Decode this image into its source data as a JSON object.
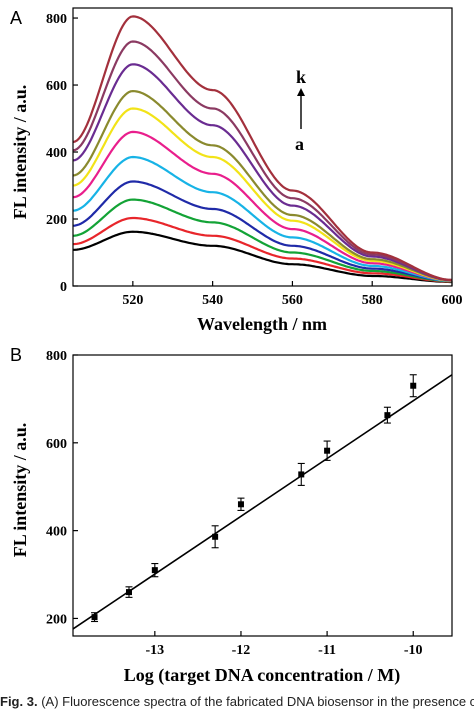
{
  "chart_data": [
    {
      "type": "line",
      "panel_label": "A",
      "xlabel": "Wavelength / nm",
      "ylabel": "FL intensity / a.u.",
      "xlim": [
        505,
        600
      ],
      "ylim": [
        0,
        830
      ],
      "x_ticks": [
        "520",
        "540",
        "560",
        "580",
        "600"
      ],
      "y_ticks": [
        "0",
        "200",
        "400",
        "600",
        "800"
      ],
      "grid": false,
      "annotation": {
        "top": "k",
        "bottom": "a"
      },
      "peak_wavelength": 520,
      "colors": [
        "#000000",
        "#e8262b",
        "#13a336",
        "#1f2aa8",
        "#17b3e6",
        "#e91e8c",
        "#f2e318",
        "#8a8a2e",
        "#6a2c91",
        "#8b3a62",
        "#a3303c"
      ],
      "series": [
        {
          "values_at": [
            505,
            520,
            540,
            560,
            580,
            600
          ],
          "values": [
            108,
            162,
            120,
            65,
            30,
            12
          ]
        },
        {
          "values_at": [
            505,
            520,
            540,
            560,
            580,
            600
          ],
          "values": [
            125,
            203,
            150,
            82,
            38,
            13
          ]
        },
        {
          "values_at": [
            505,
            520,
            540,
            560,
            580,
            600
          ],
          "values": [
            150,
            258,
            190,
            100,
            45,
            14
          ]
        },
        {
          "values_at": [
            505,
            520,
            540,
            560,
            580,
            600
          ],
          "values": [
            180,
            312,
            230,
            120,
            52,
            15
          ]
        },
        {
          "values_at": [
            505,
            520,
            540,
            560,
            580,
            600
          ],
          "values": [
            225,
            385,
            280,
            145,
            60,
            15
          ]
        },
        {
          "values_at": [
            505,
            520,
            540,
            560,
            580,
            600
          ],
          "values": [
            265,
            460,
            335,
            170,
            68,
            16
          ]
        },
        {
          "values_at": [
            505,
            520,
            540,
            560,
            580,
            600
          ],
          "values": [
            300,
            530,
            385,
            195,
            75,
            16
          ]
        },
        {
          "values_at": [
            505,
            520,
            540,
            560,
            580,
            600
          ],
          "values": [
            330,
            582,
            420,
            212,
            80,
            17
          ]
        },
        {
          "values_at": [
            505,
            520,
            540,
            560,
            580,
            600
          ],
          "values": [
            375,
            662,
            480,
            240,
            88,
            17
          ]
        },
        {
          "values_at": [
            505,
            520,
            540,
            560,
            580,
            600
          ],
          "values": [
            405,
            730,
            530,
            262,
            94,
            18
          ]
        },
        {
          "values_at": [
            505,
            520,
            540,
            560,
            580,
            600
          ],
          "values": [
            430,
            805,
            585,
            285,
            100,
            18
          ]
        }
      ]
    },
    {
      "type": "scatter",
      "panel_label": "B",
      "xlabel": "Log (target DNA concentration / M)",
      "ylabel": "FL intensity / a.u.",
      "xlim": [
        -13.95,
        -9.55
      ],
      "ylim": [
        160,
        800
      ],
      "x_ticks": [
        "-13",
        "-12",
        "-11",
        "-10"
      ],
      "y_ticks": [
        "200",
        "400",
        "600",
        "800"
      ],
      "grid": false,
      "points": [
        {
          "x": -13.7,
          "y": 203,
          "err": 10
        },
        {
          "x": -13.3,
          "y": 260,
          "err": 12
        },
        {
          "x": -13.0,
          "y": 310,
          "err": 15
        },
        {
          "x": -12.3,
          "y": 386,
          "err": 25
        },
        {
          "x": -12.0,
          "y": 460,
          "err": 14
        },
        {
          "x": -11.3,
          "y": 528,
          "err": 25
        },
        {
          "x": -11.0,
          "y": 582,
          "err": 22
        },
        {
          "x": -10.3,
          "y": 663,
          "err": 18
        },
        {
          "x": -10.0,
          "y": 730,
          "err": 25
        }
      ],
      "fit": {
        "x": [
          -13.95,
          -9.55
        ],
        "y": [
          176,
          755
        ]
      }
    }
  ],
  "caption": {
    "label": "Fig. 3.",
    "text": "(A) Fluorescence spectra of the fabricated DNA biosensor in the presence of"
  }
}
